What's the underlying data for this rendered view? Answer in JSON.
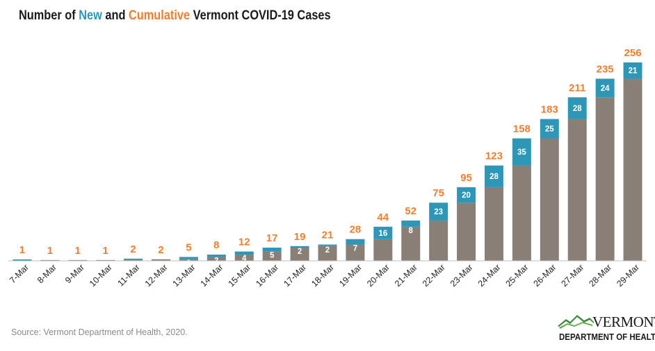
{
  "title": {
    "prefix": "Number of ",
    "new_word": "New",
    "middle": " and ",
    "cumulative_word": "Cumulative",
    "suffix": " Vermont COVID-19 Cases"
  },
  "source": "Source: Vermont Department of Health, 2020.",
  "logo": {
    "name": "VERMONT",
    "department": "DEPARTMENT OF HEALTH",
    "icon": "mountain-icon"
  },
  "colors": {
    "new": "#2e96b7",
    "cumulative_base": "#8a7f77",
    "total_label": "#ee7d2f",
    "axis": "#bfbfbf",
    "tick_text": "#222222"
  },
  "chart_data": {
    "type": "bar",
    "stacked": true,
    "title": "Number of New and Cumulative Vermont COVID-19 Cases",
    "categories": [
      "7-Mar",
      "8-Mar",
      "9-Mar",
      "10-Mar",
      "11-Mar",
      "12-Mar",
      "13-Mar",
      "14-Mar",
      "15-Mar",
      "16-Mar",
      "17-Mar",
      "18-Mar",
      "19-Mar",
      "20-Mar",
      "21-Mar",
      "22-Mar",
      "23-Mar",
      "24-Mar",
      "25-Mar",
      "26-Mar",
      "27-Mar",
      "28-Mar",
      "29-Mar"
    ],
    "series": [
      {
        "name": "Previous cumulative",
        "values": [
          0,
          1,
          1,
          1,
          1,
          2,
          2,
          5,
          8,
          12,
          17,
          19,
          21,
          28,
          44,
          52,
          75,
          95,
          123,
          158,
          183,
          211,
          235
        ]
      },
      {
        "name": "New",
        "values": [
          1,
          0,
          0,
          0,
          1,
          0,
          3,
          3,
          4,
          5,
          2,
          2,
          7,
          16,
          8,
          23,
          20,
          28,
          35,
          25,
          28,
          24,
          21
        ]
      }
    ],
    "new_labels": [
      "",
      "",
      "",
      "",
      "",
      "",
      "3",
      "3",
      "4",
      "5",
      "2",
      "2",
      "7",
      "16",
      "8",
      "23",
      "20",
      "28",
      "35",
      "25",
      "28",
      "24",
      "21"
    ],
    "totals": [
      1,
      1,
      1,
      1,
      2,
      2,
      5,
      8,
      12,
      17,
      19,
      21,
      28,
      44,
      52,
      75,
      95,
      123,
      158,
      183,
      211,
      235,
      256
    ],
    "xlabel": "",
    "ylabel": "",
    "ylim": [
      0,
      256
    ],
    "grid": false,
    "legend": "none"
  }
}
